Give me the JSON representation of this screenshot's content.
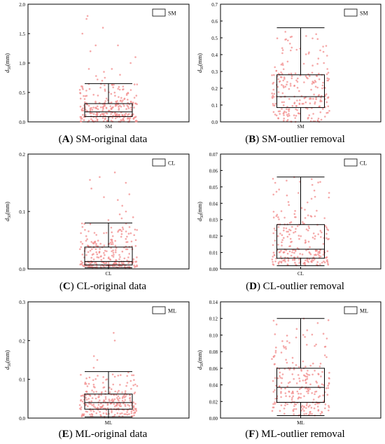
{
  "chart_data": [
    {
      "id": "A",
      "type": "box",
      "category": "SM",
      "legend": "SM",
      "caption_letter": "A",
      "caption_text": "SM-original data",
      "ylabel": {
        "base": "d",
        "sub": "50",
        "unit": "(mm)"
      },
      "ylim": [
        0,
        2.0
      ],
      "yticks": [
        0.0,
        0.5,
        1.0,
        1.5,
        2.0
      ],
      "ytick_labels": [
        "0.0",
        "0.5",
        "1.0",
        "1.5",
        "2.0"
      ],
      "box": {
        "whisker_low": 0.0,
        "q1": 0.09,
        "median": 0.17,
        "q3": 0.31,
        "whisker_high": 0.65
      },
      "points": [
        1.8,
        1.75,
        1.6,
        1.5,
        1.3,
        1.3,
        1.2,
        1.1,
        1.0,
        0.9,
        0.9,
        0.85,
        0.8,
        0.78,
        0.75,
        0.72,
        0.7
      ]
    },
    {
      "id": "B",
      "type": "box",
      "category": "SM",
      "legend": "SM",
      "caption_letter": "B",
      "caption_text": "SM-outlier removal",
      "ylabel": {
        "base": "d",
        "sub": "50",
        "unit": "(mm)"
      },
      "ylim": [
        0,
        0.7
      ],
      "yticks": [
        0.0,
        0.1,
        0.2,
        0.3,
        0.4,
        0.5,
        0.6,
        0.7
      ],
      "ytick_labels": [
        "0.0",
        "0.1",
        "0.2",
        "0.3",
        "0.4",
        "0.5",
        "0.6",
        "0.7"
      ],
      "box": {
        "whisker_low": 0.0,
        "q1": 0.085,
        "median": 0.15,
        "q3": 0.28,
        "whisker_high": 0.56
      },
      "points": []
    },
    {
      "id": "C",
      "type": "box",
      "category": "CL",
      "legend": "CL",
      "caption_letter": "C",
      "caption_text": "CL-original data",
      "ylabel": {
        "base": "d",
        "sub": "50",
        "unit": "(mm)"
      },
      "ylim": [
        0,
        0.2
      ],
      "yticks": [
        0.0,
        0.1,
        0.2
      ],
      "ytick_labels": [
        "0.0",
        "0.1",
        "0.2"
      ],
      "box": {
        "whisker_low": 0.002,
        "q1": 0.007,
        "median": 0.013,
        "q3": 0.038,
        "whisker_high": 0.08
      },
      "points": [
        0.168,
        0.16,
        0.155,
        0.15,
        0.14,
        0.13,
        0.125,
        0.12,
        0.11,
        0.1,
        0.095,
        0.09,
        0.088,
        0.085
      ]
    },
    {
      "id": "D",
      "type": "box",
      "category": "CL",
      "legend": "CL",
      "caption_letter": "D",
      "caption_text": "CL-outlier removal",
      "ylabel": {
        "base": "d",
        "sub": "50",
        "unit": "(mm)"
      },
      "ylim": [
        0,
        0.07
      ],
      "yticks": [
        0.0,
        0.01,
        0.02,
        0.03,
        0.04,
        0.05,
        0.06,
        0.07
      ],
      "ytick_labels": [
        "0.00",
        "0.01",
        "0.02",
        "0.03",
        "0.04",
        "0.05",
        "0.06",
        "0.07"
      ],
      "box": {
        "whisker_low": 0.002,
        "q1": 0.0065,
        "median": 0.012,
        "q3": 0.027,
        "whisker_high": 0.056
      },
      "points": []
    },
    {
      "id": "E",
      "type": "box",
      "category": "ML",
      "legend": "ML",
      "caption_letter": "E",
      "caption_text": "ML-original data",
      "ylabel": {
        "base": "d",
        "sub": "50",
        "unit": "(mm)"
      },
      "ylim": [
        0,
        0.3
      ],
      "yticks": [
        0.0,
        0.1,
        0.2,
        0.3
      ],
      "ytick_labels": [
        "0.0",
        "0.1",
        "0.2",
        "0.3"
      ],
      "box": {
        "whisker_low": 0.003,
        "q1": 0.023,
        "median": 0.04,
        "q3": 0.062,
        "whisker_high": 0.12
      },
      "points": [
        0.22,
        0.2,
        0.16,
        0.15,
        0.13
      ]
    },
    {
      "id": "F",
      "type": "box",
      "category": "ML",
      "legend": "ML",
      "caption_letter": "F",
      "caption_text": "ML-outlier removal",
      "ylabel": {
        "base": "d",
        "sub": "50",
        "unit": "(mm)"
      },
      "ylim": [
        0,
        0.14
      ],
      "yticks": [
        0.0,
        0.02,
        0.04,
        0.06,
        0.08,
        0.1,
        0.12,
        0.14
      ],
      "ytick_labels": [
        "0.00",
        "0.02",
        "0.04",
        "0.06",
        "0.08",
        "0.10",
        "0.12",
        "0.14"
      ],
      "box": {
        "whisker_low": 0.003,
        "q1": 0.019,
        "median": 0.037,
        "q3": 0.06,
        "whisker_high": 0.12
      },
      "points": []
    }
  ]
}
